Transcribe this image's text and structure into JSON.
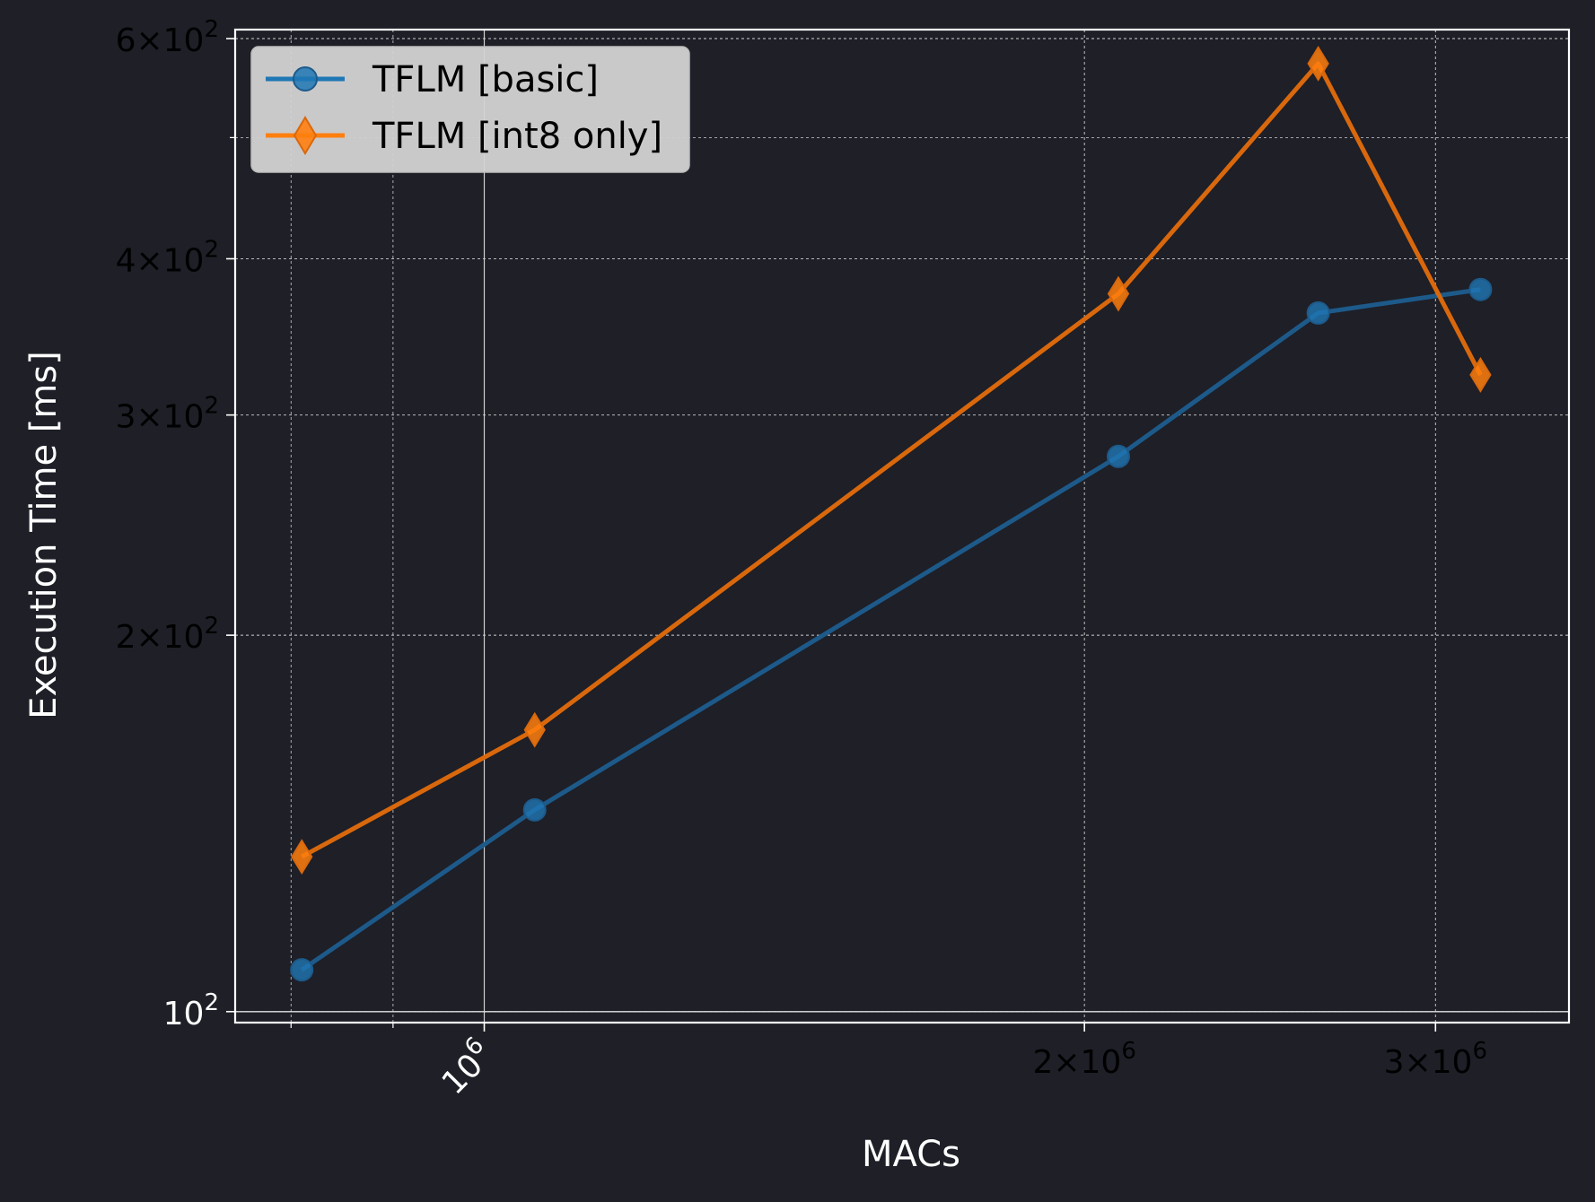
{
  "chart_data": {
    "type": "line",
    "title": "",
    "xlabel": "MACs",
    "ylabel": "Execution Time [ms]",
    "xscale": "log",
    "yscale": "log",
    "xlim": [
      750000,
      3500000
    ],
    "ylim": [
      98,
      610
    ],
    "grid": true,
    "legend_position": "top-left",
    "x_ticks": [
      {
        "base": "10",
        "exp": "6",
        "value": 1000000,
        "rotated": true
      },
      {
        "base": "2×10",
        "exp": "6",
        "value": 2000000,
        "rotated": false
      },
      {
        "base": "3×10",
        "exp": "6",
        "value": 3000000,
        "rotated": false
      }
    ],
    "y_ticks": [
      {
        "base": "10",
        "exp": "2",
        "value": 100
      },
      {
        "base": "2×10",
        "exp": "2",
        "value": 200
      },
      {
        "base": "3×10",
        "exp": "2",
        "value": 300
      },
      {
        "base": "4×10",
        "exp": "2",
        "value": 400
      },
      {
        "base": "6×10",
        "exp": "2",
        "value": 600
      }
    ],
    "series": [
      {
        "name": "TFLM [basic]",
        "color": "#1f77b4",
        "marker": "circle",
        "x": [
          810000,
          1060000,
          2080000,
          2620000,
          3160000
        ],
        "y": [
          108,
          145,
          278,
          362,
          378
        ]
      },
      {
        "name": "TFLM [int8 only]",
        "color": "#ff7f0e",
        "marker": "diamond",
        "x": [
          810000,
          1060000,
          2080000,
          2620000,
          3160000
        ],
        "y": [
          133,
          168,
          375,
          573,
          323
        ]
      }
    ]
  }
}
